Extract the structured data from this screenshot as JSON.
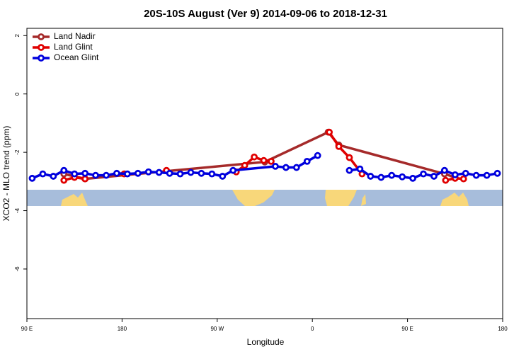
{
  "chart_data": {
    "type": "line",
    "title": "20S-10S August (Ver 9)   2014-09-06 to 2018-12-31",
    "x_label": "Longitude",
    "y_label": "XCO2 - MLO trend (ppm)",
    "xlim": [
      90,
      540
    ],
    "ylim": [
      -7.7,
      2.25
    ],
    "xticks": [
      {
        "value": 90,
        "label": "90 E"
      },
      180,
      {
        "value": 270,
        "label": "90 W"
      },
      {
        "value": 360,
        "label": "0"
      },
      {
        "value": 450,
        "label": "90 E"
      },
      {
        "value": 540,
        "label": "180"
      }
    ],
    "yticks": [
      2,
      0,
      -2,
      -4,
      -6
    ],
    "legend": "top-left",
    "series": [
      {
        "name": "Land Nadir",
        "color": "#a52a2a",
        "x": [
          125,
          145,
          315,
          375,
          385,
          485,
          495
        ],
        "values": [
          -2.74,
          -2.91,
          -2.33,
          -1.31,
          -1.75,
          -2.74,
          -2.86
        ]
      },
      {
        "name": "Land Glint",
        "color": "#e00000",
        "x": [
          125,
          135,
          145,
          160,
          182,
          200,
          222,
          260,
          288,
          296,
          305,
          314,
          321,
          340,
          376,
          385,
          395,
          407,
          440,
          486,
          495,
          503
        ],
        "values": [
          -2.96,
          -2.86,
          -2.91,
          null,
          -2.74,
          null,
          -2.62,
          null,
          -2.67,
          -2.45,
          -2.16,
          -2.28,
          -2.31,
          null,
          -1.31,
          -1.8,
          -2.18,
          -2.74,
          null,
          -2.96,
          -2.89,
          -2.91
        ]
      },
      {
        "name": "Ocean Glint",
        "color": "#0000dd",
        "x": [
          95,
          105,
          115,
          125,
          135,
          145,
          155,
          165,
          175,
          185,
          195,
          205,
          215,
          225,
          235,
          245,
          255,
          265,
          275,
          285,
          325,
          335,
          345,
          355,
          365,
          380,
          395,
          405,
          415,
          425,
          435,
          445,
          455,
          465,
          475,
          485,
          495,
          505,
          515,
          525,
          535
        ],
        "values": [
          -2.89,
          -2.74,
          -2.82,
          -2.62,
          -2.74,
          -2.72,
          -2.79,
          -2.79,
          -2.72,
          -2.74,
          -2.72,
          -2.67,
          -2.69,
          -2.72,
          -2.74,
          -2.69,
          -2.72,
          -2.74,
          -2.82,
          -2.62,
          -2.48,
          -2.52,
          -2.52,
          -2.31,
          -2.11,
          null,
          -2.62,
          -2.57,
          -2.82,
          -2.86,
          -2.79,
          -2.84,
          -2.89,
          -2.74,
          -2.82,
          -2.62,
          -2.77,
          -2.72,
          -2.79,
          -2.79,
          -2.72
        ]
      }
    ]
  }
}
